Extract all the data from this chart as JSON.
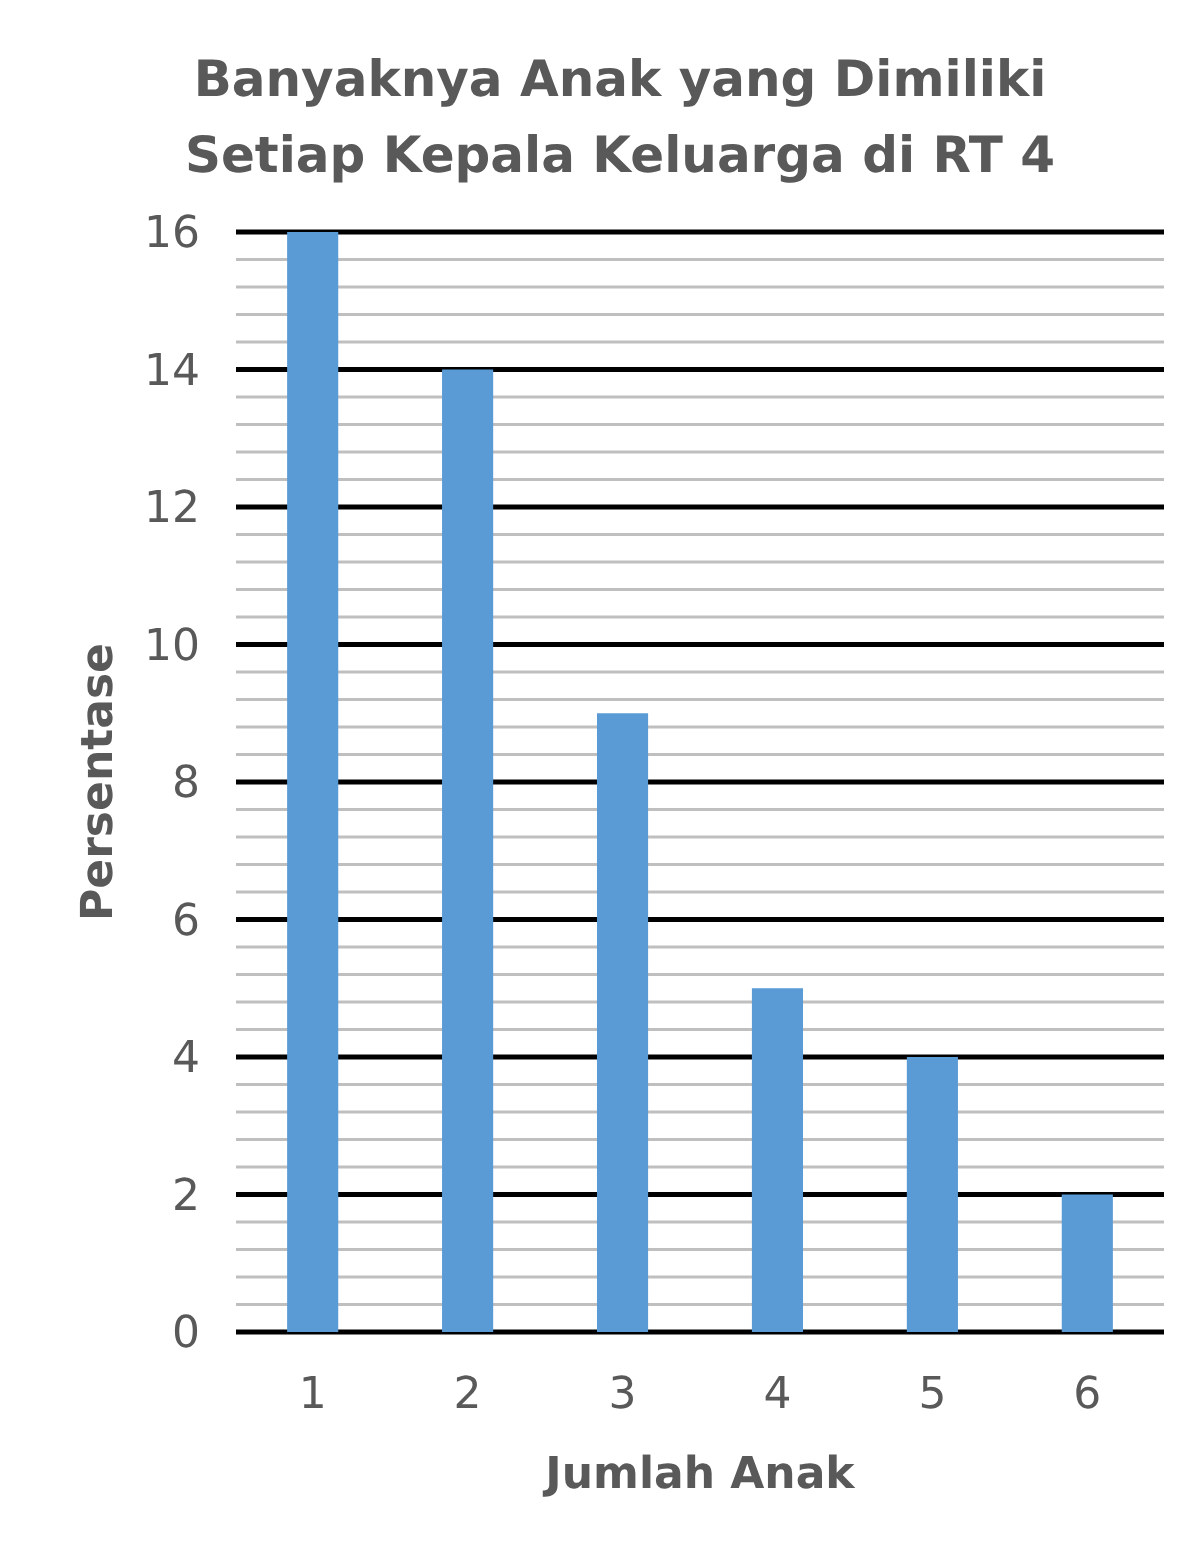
{
  "chart_data": {
    "type": "bar",
    "title": "Banyaknya Anak yang Dimiliki\nSetiap Kepala Keluarga di RT 4",
    "xlabel": "Jumlah Anak",
    "ylabel": "Persentase",
    "categories": [
      "1",
      "2",
      "3",
      "4",
      "5",
      "6"
    ],
    "values": [
      16,
      14,
      9,
      5,
      4,
      2
    ],
    "color": "#5b9bd5",
    "ylim": [
      0,
      16
    ],
    "yticks": [
      0,
      {
        "value": 0.4,
        "label": null
      },
      {
        "value": 0.8,
        "label": null
      },
      {
        "value": 1.2,
        "label": null
      },
      {
        "value": 1.6,
        "label": null
      },
      2,
      {
        "value": 2.4,
        "label": null
      },
      {
        "value": 2.8,
        "label": null
      },
      {
        "value": 3.2,
        "label": null
      },
      {
        "value": 3.6,
        "label": null
      },
      4,
      {
        "value": 4.4,
        "label": null
      },
      {
        "value": 4.8,
        "label": null
      },
      {
        "value": 5.2,
        "label": null
      },
      {
        "value": 5.6,
        "label": null
      },
      6,
      {
        "value": 6.4,
        "label": null
      },
      {
        "value": 6.8,
        "label": null
      },
      {
        "value": 7.2,
        "label": null
      },
      {
        "value": 7.6,
        "label": null
      },
      8,
      {
        "value": 8.4,
        "label": null
      },
      {
        "value": 8.8,
        "label": null
      },
      {
        "value": 9.2,
        "label": null
      },
      {
        "value": 9.6,
        "label": null
      },
      10,
      {
        "value": 10.4,
        "label": null
      },
      {
        "value": 10.8,
        "label": null
      },
      {
        "value": 11.2,
        "label": null
      },
      {
        "value": 11.6,
        "label": null
      },
      12,
      {
        "value": 12.4,
        "label": null
      },
      {
        "value": 12.8,
        "label": null
      },
      {
        "value": 13.2,
        "label": null
      },
      {
        "value": 13.6,
        "label": null
      },
      14,
      {
        "value": 14.4,
        "label": null
      },
      {
        "value": 14.8,
        "label": null
      },
      {
        "value": 15.2,
        "label": null
      },
      {
        "value": 15.6,
        "label": null
      },
      16
    ],
    "grid": "y"
  }
}
